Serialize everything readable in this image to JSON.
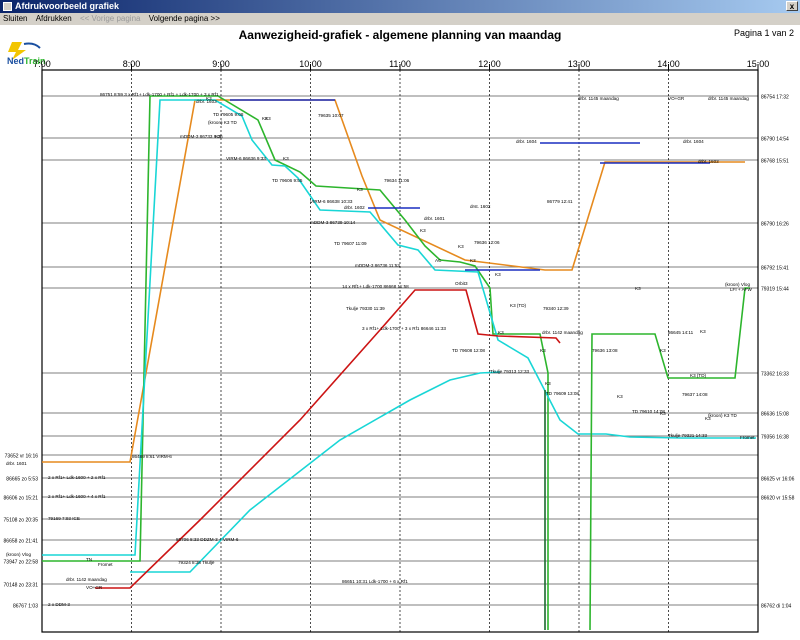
{
  "window": {
    "title": "Afdrukvoorbeeld grafiek",
    "close_glyph": "x"
  },
  "menu": {
    "close": "Sluiten",
    "print": "Afdrukken",
    "prev": "<< Vorige pagina",
    "next": "Volgende pagina >>"
  },
  "page": {
    "title": "Aanwezigheid-grafiek - algemene planning van maandag",
    "page_info": "Pagina 1 van 2"
  },
  "logo": {
    "text_ned": "Ned",
    "text_train": "Train"
  },
  "colors": {
    "green": "#2db52d",
    "cyan": "#19d6d6",
    "orange": "#e68a1e",
    "red": "#cc1414",
    "blue": "#1a2fc0",
    "darkgreen": "#1a6b2e",
    "track": "#000000"
  },
  "chart_data": {
    "type": "gantt",
    "x_ticks": [
      "7:00",
      "8:00",
      "9:00",
      "10:00",
      "11:00",
      "12:00",
      "13:00",
      "14:00",
      "15:00"
    ],
    "tracks": [
      {
        "left": "",
        "right": "86754 17:32"
      },
      {
        "left": "",
        "right": "86790 14:54"
      },
      {
        "left": "",
        "right": "86768 15:51"
      },
      {
        "left": "",
        "right": "86790 16:26"
      },
      {
        "left": "",
        "right": "86792 15:41"
      },
      {
        "left": "",
        "right": "79319 15:44"
      },
      {
        "left": "",
        "right": "73362 16:33"
      },
      {
        "left": "",
        "right": "86636 15:08"
      },
      {
        "left": "",
        "right": "79356 16:38"
      },
      {
        "left": "73652 vr 16:16",
        "right": ""
      },
      {
        "left": "86665 zo 5:53",
        "right": "86625 vr 16:06"
      },
      {
        "left": "86606 zo 15:21",
        "right": "86620 vr 15:58"
      },
      {
        "left": "75108 zo 20:35",
        "right": ""
      },
      {
        "left": "86658 zo 21:41",
        "right": ""
      },
      {
        "left": "73947 zo 22:58",
        "right": ""
      },
      {
        "left": "70148 zo 23:31",
        "right": ""
      },
      {
        "left": "86767 1:03",
        "right": "86762 di 1:04"
      }
    ],
    "labels": [
      "86751 8:59 3 x Rf1+ Ldk-1700 + Rf1 + Ldk-1700 + 3 x Rf1",
      "drbr. 1603",
      "K3",
      "79635 10:07",
      "drbr. 1145 maandag",
      "VO+GR",
      "drbr. 1145 maandag",
      "TD 79605 9:08",
      "(kroon) K3 TD",
      "mDDM-3 86733 9:06",
      "drbr. 1604",
      "drbr. 1604",
      "VIRM-6 86636 9:33",
      "drbr. 1603",
      "TD 79606 9:55",
      "79634 11:06",
      "VIRM-6 86638 10:33",
      "drbr. 1602",
      "drst. 1602",
      "86779 12:41",
      "mDDM-3 86739 10:14",
      "drbr. 1601",
      "TD 79607 11:09",
      "79636 12:06",
      "mDDM-3 86736 11:53",
      "14 x Rf1+ Ldk-1700 86668 11:58",
      "(kroon) Vlog",
      "LFI + AFW",
      "Tkulje 79330 11:39",
      "K3 (TD)",
      "79340 12:39",
      "3 x Rf1+ Ldk-1700 + 3 x Rf1 86646 11:33",
      "drbr. 1142 maandag",
      "86645 14:11",
      "TD 79608 12:08",
      "79636 13:08",
      "Tkulje 79313 12:33",
      "K3 (TD)",
      "TD 79609 13:08",
      "79637 14:08",
      "TD 79610 14:08",
      "(kroon) K3 TD",
      "Tkulje 79321 14:33",
      "Fromet",
      "drbr. 1601",
      "86489 8:61 VIRM-6",
      "2 x Rf1+ Ldk-1600 + 2 x Rf1",
      "2 x Rf1+ Ldk-1600 + 4 x Rf1",
      "79169 7:93 ICE",
      "86706 8:33 DDZM-3 + VIRM-6",
      "(kroon) Vlog",
      "TN",
      "Fromet",
      "79324 8:38 Tkulje",
      "drbr. 1142 maandag",
      "VO+GR",
      "86651 10:31 Ldk-1700 + 6 x Rf1",
      "2 x DDM-3",
      "AC",
      "Orbit3",
      "K3",
      "K3",
      "K3",
      "K3",
      "K3",
      "K3",
      "K3",
      "K3",
      "K3",
      "K3",
      "K3",
      "K3",
      "K3",
      "K3",
      "K3",
      "K3",
      "K3",
      "K3"
    ]
  }
}
